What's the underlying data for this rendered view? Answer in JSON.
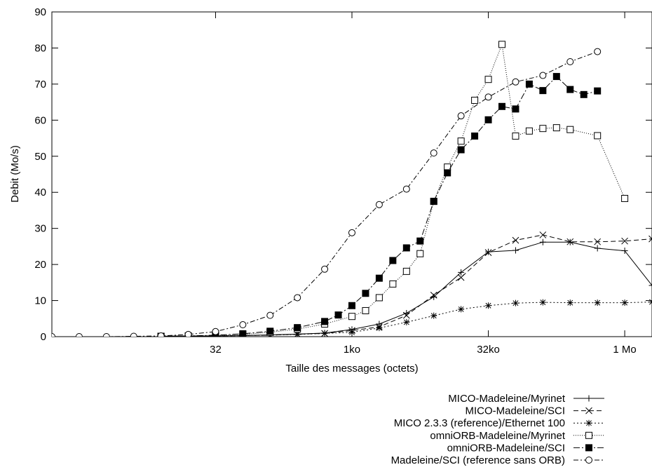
{
  "chart_data": {
    "type": "line",
    "xlabel": "Taille des messages (octets)",
    "ylabel": "Debit (Mo/s)",
    "xscale": "log2",
    "xlim": [
      0.5,
      2097152
    ],
    "ylim": [
      0,
      90
    ],
    "x_ticks": [
      {
        "value": 32,
        "label": "32"
      },
      {
        "value": 1024,
        "label": "1ko"
      },
      {
        "value": 32768,
        "label": "32ko"
      },
      {
        "value": 1048576,
        "label": "1 Mo"
      }
    ],
    "y_ticks": [
      {
        "value": 0,
        "label": "0"
      },
      {
        "value": 10,
        "label": "10"
      },
      {
        "value": 20,
        "label": "20"
      },
      {
        "value": 30,
        "label": "30"
      },
      {
        "value": 40,
        "label": "40"
      },
      {
        "value": 50,
        "label": "50"
      },
      {
        "value": 60,
        "label": "60"
      },
      {
        "value": 70,
        "label": "70"
      },
      {
        "value": 80,
        "label": "80"
      },
      {
        "value": 90,
        "label": "90"
      }
    ],
    "grid": false,
    "legend_position": "bottom-right, below plot",
    "series": [
      {
        "name": "MICO-Madeleine/Myrinet",
        "marker": "plus",
        "dash": "",
        "points": [
          [
            8,
            0.1
          ],
          [
            16,
            0.2
          ],
          [
            32,
            0.2
          ],
          [
            64,
            0.3
          ],
          [
            128,
            0.5
          ],
          [
            256,
            0.7
          ],
          [
            512,
            1.0
          ],
          [
            1024,
            2.0
          ],
          [
            2048,
            3.5
          ],
          [
            4096,
            6.5
          ],
          [
            8192,
            11
          ],
          [
            16384,
            17.8
          ],
          [
            32768,
            23.5
          ],
          [
            65536,
            23.9
          ],
          [
            131072,
            26.2
          ],
          [
            262144,
            26.2
          ],
          [
            524288,
            24.5
          ],
          [
            1048576,
            23.8
          ],
          [
            2097152,
            14.2
          ]
        ]
      },
      {
        "name": "MICO-Madeleine/SCI",
        "marker": "cross",
        "dash": "7,4",
        "points": [
          [
            8,
            0.1
          ],
          [
            16,
            0.2
          ],
          [
            32,
            0.2
          ],
          [
            64,
            0.3
          ],
          [
            128,
            0.4
          ],
          [
            256,
            0.7
          ],
          [
            512,
            0.9
          ],
          [
            1024,
            1.7
          ],
          [
            2048,
            2.7
          ],
          [
            4096,
            5.9
          ],
          [
            8192,
            11.5
          ],
          [
            16384,
            16.4
          ],
          [
            32768,
            23.3
          ],
          [
            65536,
            26.7
          ],
          [
            131072,
            28.2
          ],
          [
            262144,
            26.3
          ],
          [
            524288,
            26.3
          ],
          [
            1048576,
            26.5
          ],
          [
            2097152,
            27.1
          ]
        ]
      },
      {
        "name": "MICO 2.3.3 (reference)/Ethernet 100",
        "marker": "star",
        "dash": "2,3",
        "points": [
          [
            16,
            0.1
          ],
          [
            32,
            0.2
          ],
          [
            64,
            0.3
          ],
          [
            128,
            0.4
          ],
          [
            256,
            0.6
          ],
          [
            512,
            0.9
          ],
          [
            1024,
            1.2
          ],
          [
            2048,
            2.4
          ],
          [
            4096,
            4.0
          ],
          [
            8192,
            5.8
          ],
          [
            16384,
            7.6
          ],
          [
            32768,
            8.6
          ],
          [
            65536,
            9.3
          ],
          [
            131072,
            9.5
          ],
          [
            262144,
            9.4
          ],
          [
            524288,
            9.4
          ],
          [
            1048576,
            9.4
          ],
          [
            2097152,
            9.6
          ]
        ]
      },
      {
        "name": "omniORB-Madeleine/Myrinet",
        "marker": "box",
        "dash": "1,2",
        "points": [
          [
            8,
            0.1
          ],
          [
            16,
            0.2
          ],
          [
            32,
            0.3
          ],
          [
            64,
            0.6
          ],
          [
            128,
            1.2
          ],
          [
            256,
            2.1
          ],
          [
            512,
            3.5
          ],
          [
            1024,
            5.6
          ],
          [
            1448,
            7.2
          ],
          [
            2048,
            10.8
          ],
          [
            2896,
            14.6
          ],
          [
            4096,
            18.1
          ],
          [
            5792,
            23.0
          ],
          [
            8192,
            37.5
          ],
          [
            11585,
            47.0
          ],
          [
            16384,
            54.2
          ],
          [
            23170,
            65.5
          ],
          [
            32768,
            71.3
          ],
          [
            46341,
            81.0
          ],
          [
            65536,
            55.6
          ],
          [
            92682,
            57.0
          ],
          [
            131072,
            57.7
          ],
          [
            185364,
            57.9
          ],
          [
            262144,
            57.4
          ],
          [
            524288,
            55.7
          ],
          [
            1048576,
            38.3
          ]
        ]
      },
      {
        "name": "omniORB-Madeleine/SCI",
        "marker": "filledbox",
        "dash": "9,3,2,3",
        "points": [
          [
            8,
            0.1
          ],
          [
            16,
            0.2
          ],
          [
            32,
            0.4
          ],
          [
            64,
            0.8
          ],
          [
            128,
            1.5
          ],
          [
            256,
            2.5
          ],
          [
            512,
            4.2
          ],
          [
            724,
            6.0
          ],
          [
            1024,
            8.6
          ],
          [
            1448,
            12.0
          ],
          [
            2048,
            16.2
          ],
          [
            2896,
            21.1
          ],
          [
            4096,
            24.6
          ],
          [
            5792,
            26.5
          ],
          [
            8192,
            37.5
          ],
          [
            11585,
            45.4
          ],
          [
            16384,
            51.8
          ],
          [
            23170,
            55.6
          ],
          [
            32768,
            60.1
          ],
          [
            46341,
            63.8
          ],
          [
            65536,
            63.1
          ],
          [
            92682,
            70.0
          ],
          [
            131072,
            68.2
          ],
          [
            185364,
            72.1
          ],
          [
            262144,
            68.5
          ],
          [
            370728,
            67.1
          ],
          [
            524288,
            68.1
          ]
        ]
      },
      {
        "name": "Madeleine/SCI (reference sans ORB)",
        "marker": "circle",
        "dash": "7,3,2,3",
        "points": [
          [
            0.5,
            0
          ],
          [
            1,
            0
          ],
          [
            2,
            0
          ],
          [
            4,
            0.1
          ],
          [
            8,
            0.2
          ],
          [
            16,
            0.6
          ],
          [
            32,
            1.4
          ],
          [
            64,
            3.3
          ],
          [
            128,
            5.9
          ],
          [
            256,
            10.8
          ],
          [
            512,
            18.7
          ],
          [
            1024,
            28.8
          ],
          [
            2048,
            36.6
          ],
          [
            4096,
            40.9
          ],
          [
            8192,
            50.9
          ],
          [
            16384,
            61.2
          ],
          [
            32768,
            66.4
          ],
          [
            65536,
            70.6
          ],
          [
            131072,
            72.4
          ],
          [
            262144,
            76.2
          ],
          [
            524288,
            79.0
          ]
        ]
      }
    ]
  }
}
